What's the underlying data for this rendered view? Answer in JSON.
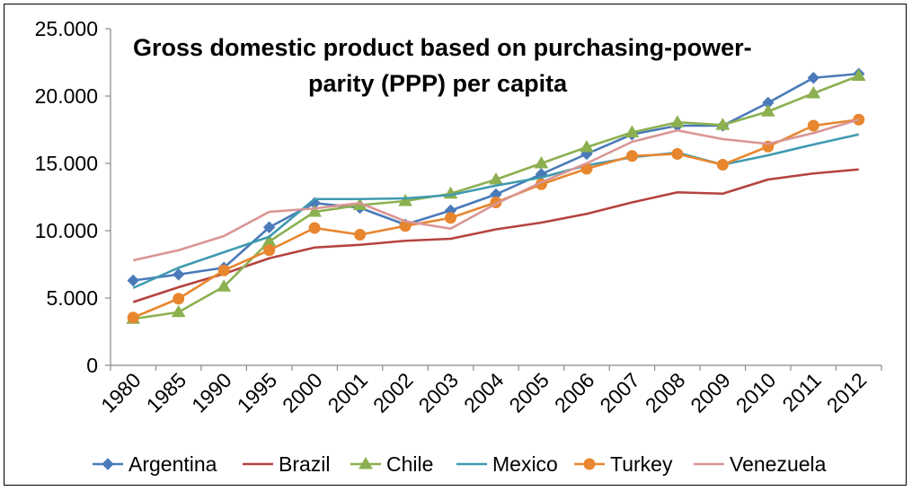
{
  "chart_data": {
    "type": "line",
    "title_lines": [
      "Gross domestic product based on purchasing-power-",
      "parity (PPP) per capita"
    ],
    "categories": [
      "1980",
      "1985",
      "1990",
      "1995",
      "2000",
      "2001",
      "2002",
      "2003",
      "2004",
      "2005",
      "2006",
      "2007",
      "2008",
      "2009",
      "2010",
      "2011",
      "2012"
    ],
    "y_ticks": [
      "0",
      "5.000",
      "10.000",
      "15.000",
      "20.000",
      "25.000"
    ],
    "ylim": [
      0,
      25000
    ],
    "grid": false,
    "legend_position": "bottom",
    "series": [
      {
        "name": "Argentina",
        "color": "#4a7ab9",
        "marker": "diamond",
        "values": [
          6300,
          6750,
          7250,
          10250,
          12050,
          11700,
          10450,
          11500,
          12700,
          14200,
          15700,
          17150,
          17800,
          17800,
          19500,
          21350,
          21650
        ]
      },
      {
        "name": "Brazil",
        "color": "#b5433f",
        "marker": "none",
        "values": [
          4700,
          5800,
          6800,
          7950,
          8750,
          8950,
          9250,
          9400,
          10100,
          10600,
          11250,
          12100,
          12850,
          12750,
          13800,
          14250,
          14550
        ]
      },
      {
        "name": "Chile",
        "color": "#8cb050",
        "marker": "triangle",
        "values": [
          3450,
          3950,
          5850,
          9200,
          11400,
          11900,
          12200,
          12750,
          13800,
          15000,
          16200,
          17300,
          18050,
          17850,
          18850,
          20200,
          21500
        ]
      },
      {
        "name": "Mexico",
        "color": "#3f9ab0",
        "marker": "none",
        "values": [
          5750,
          7250,
          8400,
          9550,
          12350,
          12350,
          12400,
          12650,
          13350,
          13950,
          14850,
          15450,
          15800,
          14900,
          15600,
          16400,
          17150
        ]
      },
      {
        "name": "Turkey",
        "color": "#e8862f",
        "marker": "circle",
        "values": [
          3550,
          4950,
          7050,
          8550,
          10200,
          9700,
          10350,
          10950,
          12100,
          13450,
          14600,
          15550,
          15700,
          14900,
          16250,
          17800,
          18250
        ]
      },
      {
        "name": "Venezuela",
        "color": "#d99594",
        "marker": "none",
        "values": [
          7800,
          8550,
          9600,
          11400,
          11650,
          12050,
          10700,
          10150,
          12000,
          13600,
          15000,
          16600,
          17450,
          16800,
          16450,
          17250,
          18250
        ]
      }
    ]
  }
}
